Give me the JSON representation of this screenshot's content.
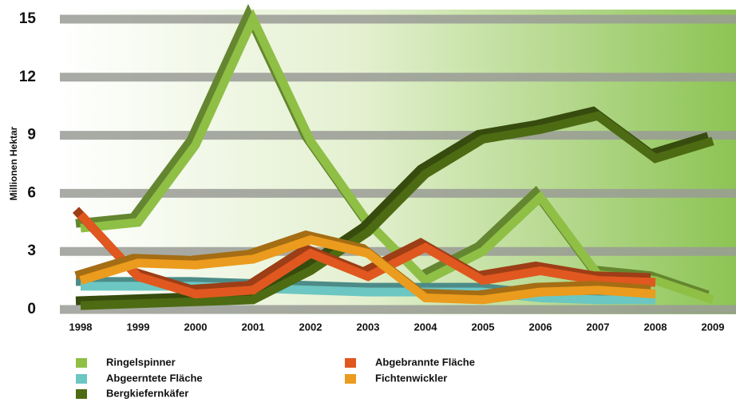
{
  "chart_data": {
    "type": "line",
    "y_label": "Millionen Hektar",
    "categories": [
      "1998",
      "1999",
      "2000",
      "2001",
      "2002",
      "2003",
      "2004",
      "2005",
      "2006",
      "2007",
      "2008",
      "2009"
    ],
    "series": [
      {
        "name": "Ringelspinner",
        "color": "#8fbf45",
        "values": [
          4.2,
          4.5,
          8.5,
          15,
          8.7,
          4.5,
          1.5,
          3.0,
          5.8,
          1.8,
          1.5,
          0.5
        ]
      },
      {
        "name": "Abgeerntete Fläche",
        "color": "#6cc6c2",
        "values": [
          1.2,
          1.2,
          1.2,
          1.1,
          1.0,
          0.9,
          0.9,
          0.9,
          0.6,
          0.5,
          0.5,
          null
        ]
      },
      {
        "name": "Bergkiefernkäfer",
        "color": "#4d6b12",
        "values": [
          0.2,
          0.3,
          0.4,
          0.5,
          2.0,
          4.0,
          7.0,
          8.8,
          9.3,
          10.0,
          7.8,
          8.7
        ]
      },
      {
        "name": "Abgebrannte Fläche",
        "color": "#e0581f",
        "values": [
          4.9,
          1.7,
          0.8,
          1.0,
          2.9,
          1.7,
          3.2,
          1.5,
          2.0,
          1.5,
          1.4,
          null
        ]
      },
      {
        "name": "Fichtenwickler",
        "color": "#eb9b1d",
        "values": [
          1.5,
          2.4,
          2.3,
          2.6,
          3.6,
          2.9,
          0.6,
          0.5,
          0.9,
          1.0,
          0.8,
          null
        ]
      }
    ],
    "ylim": [
      0,
      15
    ],
    "yticks": [
      0,
      3,
      6,
      9,
      12,
      15
    ],
    "grid": true
  }
}
